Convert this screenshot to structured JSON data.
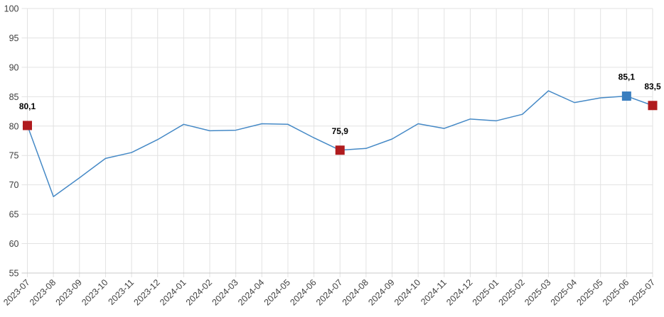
{
  "chart_data": {
    "type": "line",
    "title": "",
    "xlabel": "",
    "ylabel": "",
    "categories": [
      "2023-07",
      "2023-08",
      "2023-09",
      "2023-10",
      "2023-11",
      "2023-12",
      "2024-01",
      "2024-02",
      "2024-03",
      "2024-04",
      "2024-05",
      "2024-06",
      "2024-07",
      "2024-08",
      "2024-09",
      "2024-10",
      "2024-11",
      "2024-12",
      "2025-01",
      "2025-02",
      "2025-03",
      "2025-04",
      "2025-05",
      "2025-06",
      "2025-07"
    ],
    "values": [
      80.1,
      68.0,
      71.2,
      74.5,
      75.5,
      77.7,
      80.3,
      79.2,
      79.3,
      80.4,
      80.3,
      78.0,
      75.9,
      76.2,
      77.8,
      80.4,
      79.6,
      81.2,
      80.9,
      82.0,
      86.0,
      84.0,
      84.8,
      85.1,
      83.5
    ],
    "ylim": [
      55,
      100
    ],
    "y_ticks": [
      55,
      60,
      65,
      70,
      75,
      80,
      85,
      90,
      95,
      100
    ],
    "grid": true,
    "legend": "none",
    "x_label_rotation_deg": -45,
    "marked_points": [
      {
        "category": "2023-07",
        "index": 0,
        "value": 80.1,
        "label": "80,1",
        "marker_color": "#b01b1e"
      },
      {
        "category": "2024-07",
        "index": 12,
        "value": 75.9,
        "label": "75,9",
        "marker_color": "#b01b1e"
      },
      {
        "category": "2025-06",
        "index": 23,
        "value": 85.1,
        "label": "85,1",
        "marker_color": "#3a7ebf"
      },
      {
        "category": "2025-07",
        "index": 24,
        "value": 83.5,
        "label": "83,5",
        "marker_color": "#b01b1e"
      }
    ],
    "colors": {
      "line": "#4589c6",
      "grid": "#e2e2e2",
      "axis_line": "#c8c8c8",
      "axis_label": "#3f3f3f",
      "data_label": "#000000",
      "background": "#ffffff"
    }
  }
}
